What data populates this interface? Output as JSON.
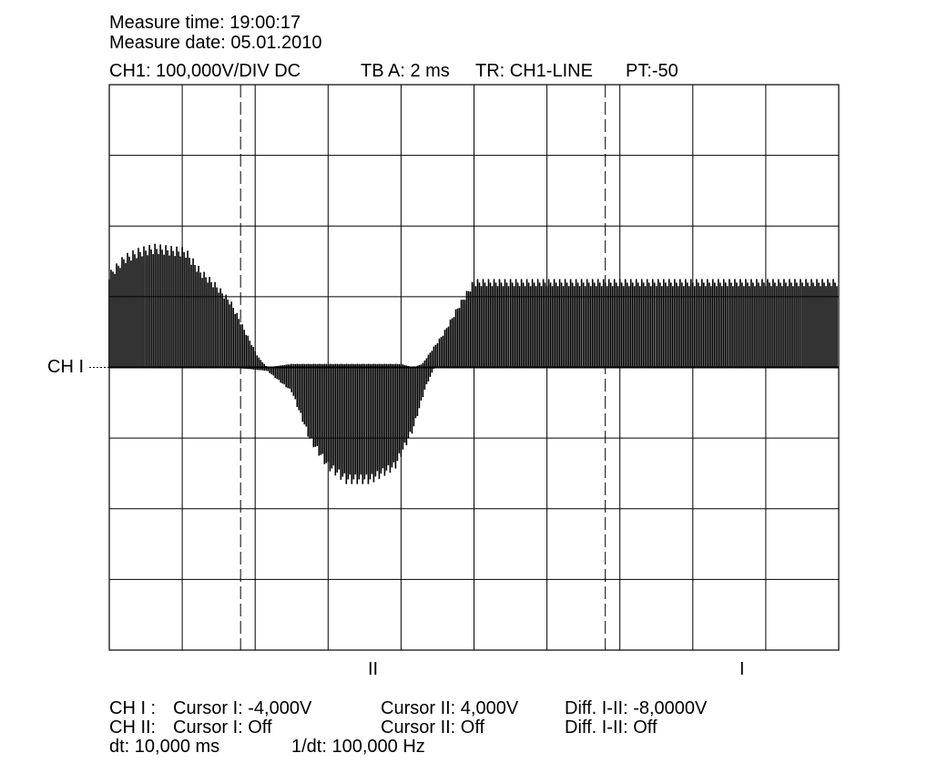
{
  "header": {
    "measure_time": "Measure time: 19:00:17",
    "measure_date": "Measure date: 05.01.2010",
    "ch_setting": "CH1: 100,000V/DIV DC",
    "timebase": "TB A: 2 ms",
    "trigger": "TR: CH1-LINE",
    "pretrigger": "PT:-50"
  },
  "channel_marker": "CH I",
  "cursor_labels": {
    "cursor_ii": "II",
    "cursor_i": "I"
  },
  "footer": {
    "ch1_label": "CH I :",
    "ch1_cursor1": "Cursor I: -4,000V",
    "ch1_cursor2": "Cursor II: 4,000V",
    "ch1_diff": "Diff. I-II: -8,0000V",
    "ch2_label": "CH II:",
    "ch2_cursor1": "Cursor I: Off",
    "ch2_cursor2": "Cursor II: Off",
    "ch2_diff": "Diff. I-II: Off",
    "dt": "dt: 10,000 ms",
    "inv_dt": "1/dt: 100,000 Hz"
  },
  "colors": {
    "trace": "#000000",
    "grid": "#000000",
    "background": "#ffffff"
  },
  "chart_data": {
    "type": "line",
    "grid": {
      "x_divisions": 10,
      "y_divisions": 8
    },
    "volts_per_div": 100,
    "time_per_div_ms": 2,
    "channel_ground_div": 4,
    "cursors_time_ms": {
      "II": 3.6,
      "I": 13.6
    },
    "series": [
      {
        "envelope_upper_div": [
          [
            0.0,
            1.35
          ],
          [
            0.5,
            1.6
          ],
          [
            1.0,
            1.7
          ],
          [
            1.5,
            1.75
          ],
          [
            2.0,
            1.72
          ],
          [
            2.5,
            1.7
          ],
          [
            3.0,
            1.4
          ],
          [
            3.5,
            1.2
          ],
          [
            4.0,
            0.95
          ],
          [
            4.5,
            0.5
          ],
          [
            4.9,
            0.15
          ],
          [
            5.2,
            0.0
          ],
          [
            6.0,
            0.05
          ],
          [
            7.0,
            0.05
          ],
          [
            8.0,
            0.05
          ],
          [
            9.0,
            0.05
          ],
          [
            9.6,
            0.05
          ],
          [
            10.0,
            0.0
          ],
          [
            10.3,
            0.05
          ],
          [
            11.0,
            0.5
          ],
          [
            11.5,
            0.9
          ],
          [
            12.0,
            1.25
          ]
        ],
        "envelope_lower_div": [
          [
            0.0,
            0.2
          ],
          [
            3.0,
            0.0
          ],
          [
            4.0,
            0.0
          ],
          [
            5.2,
            -0.05
          ],
          [
            6.0,
            -0.35
          ],
          [
            6.6,
            -1.05
          ],
          [
            7.2,
            -1.45
          ],
          [
            7.8,
            -1.65
          ],
          [
            8.6,
            -1.65
          ],
          [
            9.4,
            -1.45
          ],
          [
            10.0,
            -0.9
          ],
          [
            10.4,
            -0.3
          ],
          [
            10.7,
            0.0
          ],
          [
            12.0,
            0.0
          ]
        ],
        "envelope_time_scale_ms_per_unit": 0.8333
      }
    ]
  }
}
